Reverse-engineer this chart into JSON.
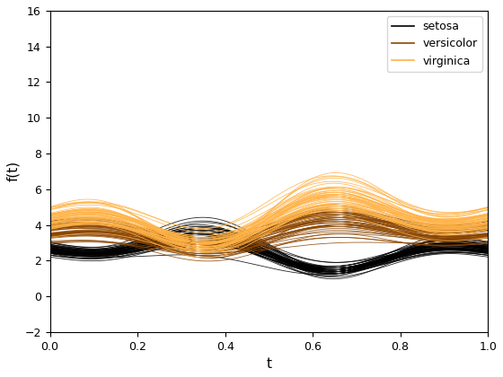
{
  "title": "",
  "xlabel": "t",
  "ylabel": "f(t)",
  "xlim": [
    0,
    1
  ],
  "ylim": [
    -2,
    16
  ],
  "xticks": [
    0,
    0.2,
    0.4,
    0.6,
    0.8,
    1.0
  ],
  "yticks": [
    -2,
    0,
    2,
    4,
    6,
    8,
    10,
    12,
    14,
    16
  ],
  "species_colors": {
    "setosa": "#000000",
    "versicolor": "#8B4500",
    "virginica": "#FFB347"
  },
  "species_names": [
    "setosa",
    "versicolor",
    "virginica"
  ],
  "n_points": 300,
  "linewidth": 0.6,
  "alpha": 0.85,
  "legend_loc": "upper right",
  "figsize": [
    5.6,
    4.2
  ],
  "dpi": 100,
  "t_knots": [
    0.0,
    0.3333333333333333,
    0.6666666666666666,
    1.0
  ]
}
